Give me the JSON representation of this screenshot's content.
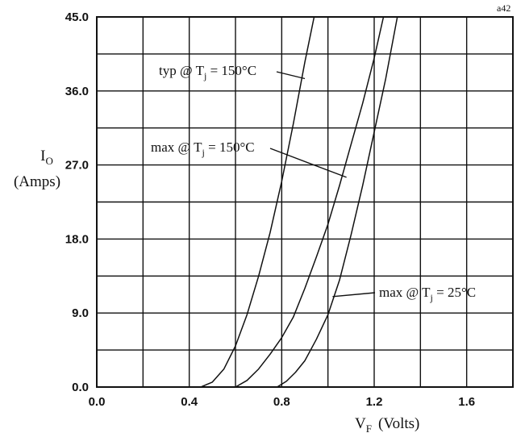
{
  "chart_data": {
    "type": "line",
    "title": "",
    "xlabel": "V_F (Volts)",
    "ylabel": "I_O (Amps)",
    "xlim": [
      0.0,
      1.8
    ],
    "ylim": [
      0.0,
      45.0
    ],
    "x_ticks": [
      "0.0",
      "0.4",
      "0.8",
      "1.2",
      "1.6"
    ],
    "y_ticks": [
      "0.0",
      "9.0",
      "18.0",
      "27.0",
      "36.0",
      "45.0"
    ],
    "grid": true,
    "corner_label": "a42",
    "series": [
      {
        "name": "typ @ Tj = 150°C",
        "x": [
          0.45,
          0.5,
          0.55,
          0.6,
          0.65,
          0.7,
          0.75,
          0.8,
          0.85,
          0.9,
          0.94
        ],
        "y": [
          0.0,
          0.6,
          2.2,
          5.0,
          8.8,
          13.5,
          18.8,
          25.0,
          32.0,
          39.5,
          45.0
        ]
      },
      {
        "name": "max @ Tj = 150°C",
        "x": [
          0.6,
          0.65,
          0.7,
          0.75,
          0.8,
          0.85,
          0.9,
          0.95,
          1.0,
          1.05,
          1.1,
          1.15,
          1.2,
          1.24
        ],
        "y": [
          0.0,
          0.8,
          2.2,
          4.0,
          6.0,
          8.5,
          12.0,
          15.8,
          19.8,
          24.5,
          29.5,
          34.5,
          40.0,
          45.0
        ]
      },
      {
        "name": "max @ Tj = 25°C",
        "x": [
          0.78,
          0.82,
          0.86,
          0.9,
          0.95,
          1.0,
          1.05,
          1.1,
          1.15,
          1.2,
          1.25,
          1.3
        ],
        "y": [
          0.0,
          0.7,
          1.8,
          3.2,
          5.8,
          8.8,
          13.0,
          18.5,
          24.5,
          31.0,
          37.5,
          45.0
        ]
      }
    ],
    "annotations": [
      {
        "name_text": "typ @ T",
        "sub": "j",
        "rest": " = 150°C",
        "target_x": 0.9,
        "target_y": 37.5
      },
      {
        "name_text": "max @ T",
        "sub": "j",
        "rest": " = 150°C",
        "target_x": 1.08,
        "target_y": 25.5
      },
      {
        "name_text": "max @ T",
        "sub": "j",
        "rest": " = 25°C",
        "target_x": 1.02,
        "target_y": 11.0
      }
    ],
    "ylabel_main": "I",
    "ylabel_sub": "O",
    "ylabel_unit": "(Amps)",
    "xlabel_main": "V",
    "xlabel_sub": "F",
    "xlabel_unit": "(Volts)"
  }
}
